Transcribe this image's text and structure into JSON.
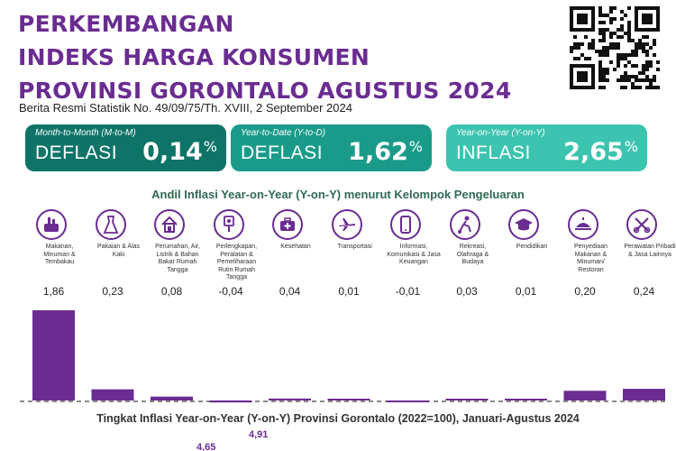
{
  "header": {
    "title_line1": "PERKEMBANGAN",
    "title_line2": "INDEKS HARGA KONSUMEN",
    "title_line3": "PROVINSI GORONTALO AGUSTUS 2024",
    "subtitle": "Berita Resmi Statistik No. 49/09/75/Th. XVIII, 2 September 2024"
  },
  "cards": [
    {
      "label": "Month-to-Month (M-to-M)",
      "kind": "DEFLASI",
      "value": "0,14",
      "unit": "%",
      "color": "#0e7468"
    },
    {
      "label": "Year-to-Date (Y-to-D)",
      "kind": "DEFLASI",
      "value": "1,62",
      "unit": "%",
      "color": "#1a9b8a"
    },
    {
      "label": "Year-on-Year (Y-on-Y)",
      "kind": "INFLASI",
      "value": "2,65",
      "unit": "%",
      "color": "#3cc4b0"
    }
  ],
  "chart_data": [
    {
      "type": "bar",
      "title": "Andil Inflasi Year-on-Year (Y-on-Y) menurut Kelompok Pengeluaran",
      "categories": [
        "Makanan, Minuman & Tembakau",
        "Pakaian & Alas Kaki",
        "Perumahan, Air, Listrik & Bahan Bakar Rumah Tangga",
        "Perlengkapan, Peralatan & Pemeliharaan Rutin Rumah Tangga",
        "Kesehatan",
        "Transportasi",
        "Informasi, Komunikasi & Jasa Keuangan",
        "Rekreasi, Olahraga & Budaya",
        "Pendidikan",
        "Penyediaan Makanan & Minuman/ Restoran",
        "Perawatan Pribadi & Jasa Lainnya"
      ],
      "values": [
        1.86,
        0.23,
        0.08,
        -0.04,
        0.04,
        0.01,
        -0.01,
        0.03,
        0.01,
        0.2,
        0.24
      ],
      "value_labels": [
        "1,86",
        "0,23",
        "0,08",
        "-0,04",
        "0,04",
        "0,01",
        "-0,01",
        "0,03",
        "0,01",
        "0,20",
        "0,24"
      ],
      "icons": [
        "food-basket-icon",
        "dress-icon",
        "house-icon",
        "appliance-icon",
        "medical-kit-icon",
        "airplane-icon",
        "smartphone-icon",
        "soccer-player-icon",
        "graduation-cap-icon",
        "restaurant-icon",
        "scissors-icon"
      ],
      "bar_color": "#6a2c91",
      "grid": false
    },
    {
      "type": "line",
      "title": "Tingkat Inflasi Year-on-Year (Y-on-Y) Provinsi Gorontalo (2022=100), Januari-Agustus 2024",
      "visible_values": [
        "4,65",
        "4,91"
      ]
    }
  ],
  "colors": {
    "accent": "#6a2c91",
    "section_green": "#2f6a52"
  }
}
